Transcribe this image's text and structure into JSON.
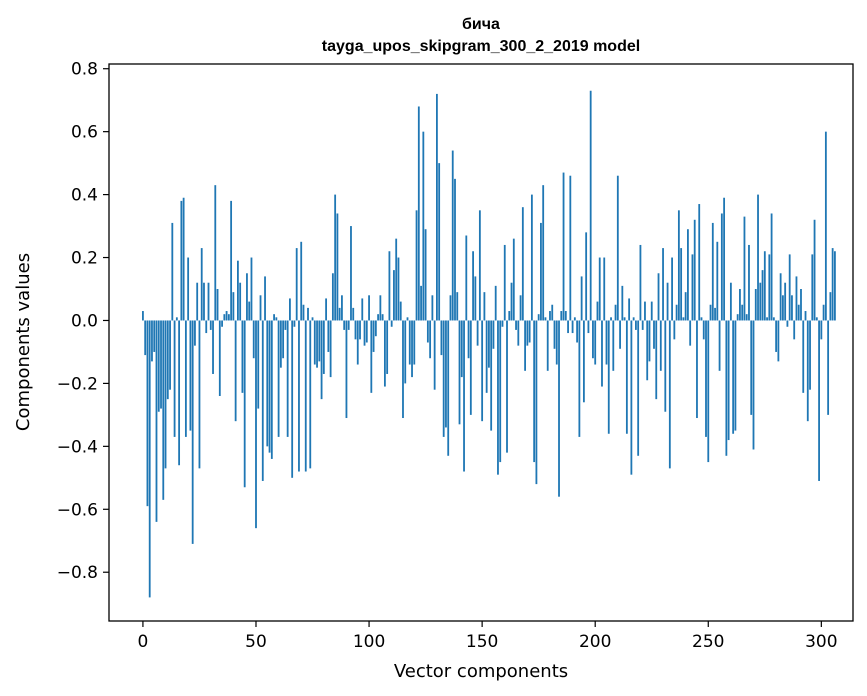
{
  "chart_data": {
    "type": "bar",
    "title": "бича",
    "subtitle": "tayga_upos_skipgram_300_2_2019 model",
    "xlabel": "Vector components",
    "ylabel": "Components values",
    "xlim": [
      -15,
      314
    ],
    "ylim": [
      -0.955,
      0.815
    ],
    "xticks": [
      0,
      50,
      100,
      150,
      200,
      250,
      300
    ],
    "xtick_labels": [
      "0",
      "50",
      "100",
      "150",
      "200",
      "250",
      "300"
    ],
    "yticks": [
      -0.8,
      -0.6,
      -0.4,
      -0.2,
      0.0,
      0.2,
      0.4,
      0.6,
      0.8
    ],
    "ytick_labels": [
      "−0.8",
      "−0.6",
      "−0.4",
      "−0.2",
      "0.0",
      "0.2",
      "0.4",
      "0.6",
      "0.8"
    ],
    "bar_color": "#1f77b4",
    "values": [
      0.03,
      -0.11,
      -0.59,
      -0.88,
      -0.13,
      -0.1,
      -0.64,
      -0.29,
      -0.28,
      -0.57,
      -0.47,
      -0.25,
      -0.22,
      0.31,
      -0.37,
      0.01,
      -0.46,
      0.38,
      0.39,
      -0.37,
      0.2,
      -0.35,
      -0.71,
      -0.08,
      0.12,
      -0.47,
      0.23,
      0.12,
      -0.04,
      0.12,
      -0.03,
      -0.17,
      0.43,
      0.1,
      -0.24,
      -0.02,
      0.02,
      0.03,
      0.02,
      0.38,
      0.09,
      -0.32,
      0.19,
      0.12,
      -0.23,
      -0.53,
      0.15,
      0.06,
      0.2,
      -0.12,
      -0.66,
      -0.28,
      0.08,
      -0.51,
      0.14,
      -0.4,
      -0.42,
      -0.44,
      0.02,
      0.01,
      -0.37,
      -0.15,
      -0.12,
      -0.03,
      -0.37,
      0.07,
      -0.5,
      -0.02,
      0.23,
      -0.48,
      0.25,
      0.05,
      -0.48,
      0.04,
      -0.47,
      0.01,
      -0.14,
      -0.15,
      -0.13,
      -0.25,
      -0.17,
      0.07,
      -0.1,
      -0.18,
      0.15,
      0.4,
      0.34,
      0.04,
      0.08,
      -0.03,
      -0.31,
      -0.03,
      0.3,
      0.04,
      -0.06,
      -0.14,
      -0.06,
      0.07,
      -0.08,
      -0.07,
      0.08,
      -0.23,
      -0.1,
      -0.05,
      0.02,
      0.08,
      0.02,
      -0.21,
      -0.17,
      0.22,
      -0.02,
      0.16,
      0.26,
      0.2,
      0.06,
      -0.31,
      -0.2,
      0.01,
      -0.14,
      -0.18,
      -0.14,
      0.35,
      0.68,
      0.11,
      0.6,
      0.29,
      -0.07,
      -0.12,
      0.08,
      -0.22,
      0.72,
      0.5,
      -0.11,
      -0.37,
      -0.34,
      -0.43,
      0.08,
      0.54,
      0.45,
      0.09,
      -0.33,
      -0.18,
      -0.48,
      0.27,
      -0.12,
      -0.3,
      0.22,
      0.14,
      -0.08,
      0.35,
      -0.32,
      0.09,
      -0.23,
      -0.15,
      -0.35,
      -0.09,
      0.11,
      -0.49,
      -0.45,
      -0.02,
      0.24,
      -0.42,
      0.03,
      0.12,
      0.26,
      -0.03,
      -0.08,
      0.08,
      0.36,
      -0.16,
      -0.08,
      -0.07,
      0.4,
      -0.45,
      -0.52,
      0.02,
      0.31,
      0.43,
      0.01,
      -0.16,
      0.03,
      0.05,
      -0.09,
      -0.14,
      -0.56,
      0.03,
      0.47,
      0.03,
      -0.04,
      0.46,
      -0.04,
      0.01,
      -0.07,
      -0.37,
      0.14,
      -0.26,
      0.28,
      -0.04,
      0.73,
      -0.12,
      -0.14,
      0.06,
      0.2,
      -0.21,
      0.2,
      -0.14,
      -0.36,
      0.01,
      -0.16,
      0.05,
      0.46,
      -0.09,
      0.11,
      0.01,
      -0.36,
      0.07,
      -0.49,
      0.01,
      -0.03,
      -0.43,
      0.24,
      -0.03,
      0.06,
      -0.19,
      -0.13,
      0.06,
      -0.09,
      -0.25,
      0.15,
      -0.16,
      0.23,
      -0.29,
      0.12,
      -0.47,
      0.2,
      -0.06,
      0.05,
      0.35,
      0.23,
      0.01,
      0.09,
      0.29,
      -0.08,
      0.21,
      0.32,
      -0.31,
      0.37,
      0.01,
      -0.06,
      -0.37,
      -0.45,
      0.05,
      0.31,
      0.04,
      0.25,
      -0.16,
      0.34,
      0.39,
      -0.43,
      -0.38,
      0.12,
      -0.36,
      -0.35,
      0.02,
      0.1,
      0.05,
      0.33,
      0.02,
      0.24,
      -0.3,
      -0.41,
      0.1,
      0.4,
      0.12,
      0.16,
      0.22,
      0.01,
      0.21,
      0.34,
      0.01,
      -0.1,
      -0.13,
      0.15,
      0.08,
      0.12,
      -0.02,
      0.21,
      0.08,
      -0.06,
      0.14,
      0.05,
      0.1,
      -0.23,
      0.03,
      -0.32,
      -0.22,
      0.21,
      0.32,
      0.01,
      -0.51,
      -0.06,
      0.05,
      0.6,
      -0.3,
      0.09,
      0.23,
      0.22
    ]
  }
}
